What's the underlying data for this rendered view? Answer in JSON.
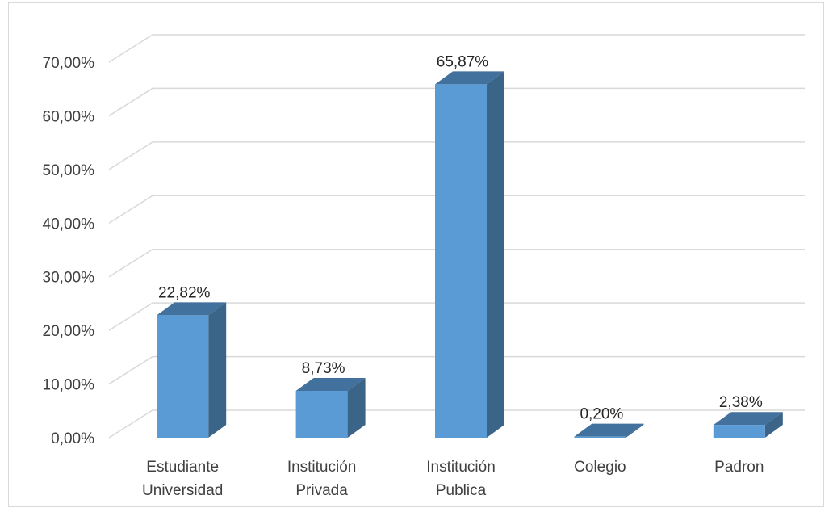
{
  "chart_data": {
    "type": "bar",
    "title": "",
    "xlabel": "",
    "ylabel": "",
    "ylim": [
      0,
      70
    ],
    "yticks": [
      "0,00%",
      "10,00%",
      "20,00%",
      "30,00%",
      "40,00%",
      "50,00%",
      "60,00%",
      "70,00%"
    ],
    "categories": [
      [
        "Estudiante",
        "Universidad"
      ],
      [
        "Institución",
        "Privada"
      ],
      [
        "Institución",
        "Publica"
      ],
      [
        "Colegio"
      ],
      [
        "Padron"
      ]
    ],
    "values": [
      22.82,
      8.73,
      65.87,
      0.2,
      2.38
    ],
    "data_labels": [
      "22,82%",
      "8,73%",
      "65,87%",
      "0,20%",
      "2,38%"
    ],
    "grid": true,
    "legend": "none",
    "colors": {
      "bar_front": "#5b9bd5",
      "bar_side": "#3a6488",
      "bar_top": "#41719c",
      "grid": "#d9d9d9"
    }
  }
}
